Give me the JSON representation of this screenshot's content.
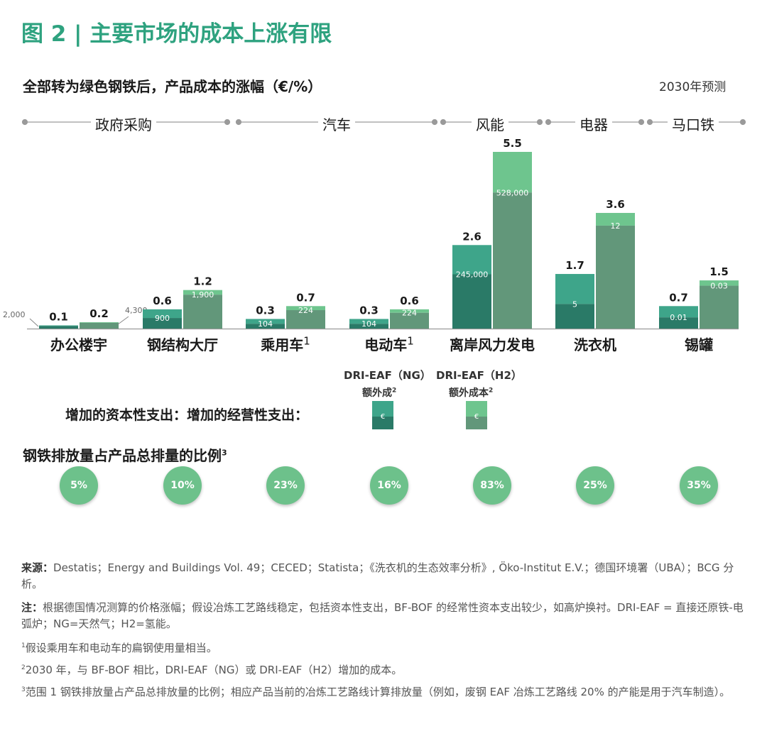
{
  "figure_title": "图 2 | 主要市场的成本上涨有限",
  "chart_title": "全部转为绿色钢铁后，产品成本的涨幅（€/%）",
  "forecast_label": "2030年预测",
  "sectors": [
    "政府采购",
    "汽车",
    "风能",
    "电器",
    "马口铁"
  ],
  "chart_data": {
    "type": "bar",
    "title": "全部转为绿色钢铁后，产品成本的涨幅（€/%）",
    "xlabel": "",
    "ylabel": "",
    "ylim": [
      0,
      5.5
    ],
    "categories": [
      "办公楼宇",
      "钢结构大厅",
      "乘用车",
      "电动车",
      "离岸风力发电",
      "洗衣机",
      "锡罐"
    ],
    "category_superscripts": [
      "",
      "",
      "1",
      "1",
      "",
      "",
      ""
    ],
    "series": [
      {
        "name": "DRI-EAF（NG）额外成本",
        "values": [
          0.1,
          0.6,
          0.3,
          0.3,
          2.6,
          1.7,
          0.7
        ],
        "value_labels": [
          "0.1",
          "0.6",
          "0.3",
          "0.3",
          "2.6",
          "1.7",
          "0.7"
        ],
        "capex_share": [
          0.2,
          0.45,
          0.5,
          0.5,
          0.35,
          0.55,
          0.5
        ],
        "inner_labels": [
          "2,000",
          "900",
          "104",
          "104",
          "245,000",
          "5",
          "0.01"
        ]
      },
      {
        "name": "DRI-EAF（H2）额外成本",
        "values": [
          0.2,
          1.2,
          0.7,
          0.6,
          5.5,
          3.6,
          1.5
        ],
        "value_labels": [
          "0.2",
          "1.2",
          "0.7",
          "0.6",
          "5.5",
          "3.6",
          "1.5"
        ],
        "capex_share": [
          0.1,
          0.12,
          0.18,
          0.18,
          0.23,
          0.11,
          0.11
        ],
        "inner_labels": [
          "4,300",
          "1,900",
          "224",
          "224",
          "528,000",
          "12",
          "0.03"
        ]
      }
    ]
  },
  "legend": {
    "ng_line1": "DRI-EAF（NG）",
    "ng_line2": "额外成",
    "ng_sup": "2",
    "h2_line1": "DRI-EAF（H2）",
    "h2_line2": "额外成本",
    "h2_sup": "2",
    "label": "增加的资本性支出：增加的经营性支出：",
    "symbol": "€",
    "capex_ng_color": "#3ea58a",
    "opex_ng_color": "#2a7a67",
    "capex_h2_color": "#6ec58e",
    "opex_h2_color": "#62977a"
  },
  "share": {
    "title": "钢铁排放量占产品总排量的比例",
    "title_sup": "3",
    "values": [
      "5%",
      "10%",
      "23%",
      "16%",
      "83%",
      "25%",
      "35%"
    ]
  },
  "notes": {
    "source_label": "来源：",
    "source_text": "Destatis；Energy and Buildings Vol. 49；CECED；Statista；《洗衣机的生态效率分析》, Öko-Institut E.V.；德国环境署（UBA）；BCG 分析。",
    "note_label": "注：",
    "note_text": "根据德国情况测算的价格涨幅；假设冶炼工艺路线稳定，包括资本性支出，BF-BOF 的经常性资本支出较少，如高炉换衬。DRI-EAF = 直接还原铁-电弧炉；NG=天然气；H2=氢能。",
    "fn1_mark": "1",
    "fn1": "假设乘用车和电动车的扁钢使用量相当。",
    "fn2_mark": "2",
    "fn2": "2030 年，与 BF-BOF 相比，DRI-EAF（NG）或 DRI-EAF（H2）增加的成本。",
    "fn3_mark": "3",
    "fn3": "范围 1 钢铁排放量占产品总排放量的比例；相应产品当前的冶炼工艺路线计算排放量（例如，废钢 EAF 冶炼工艺路线 20% 的产能是用于汽车制造）。"
  }
}
